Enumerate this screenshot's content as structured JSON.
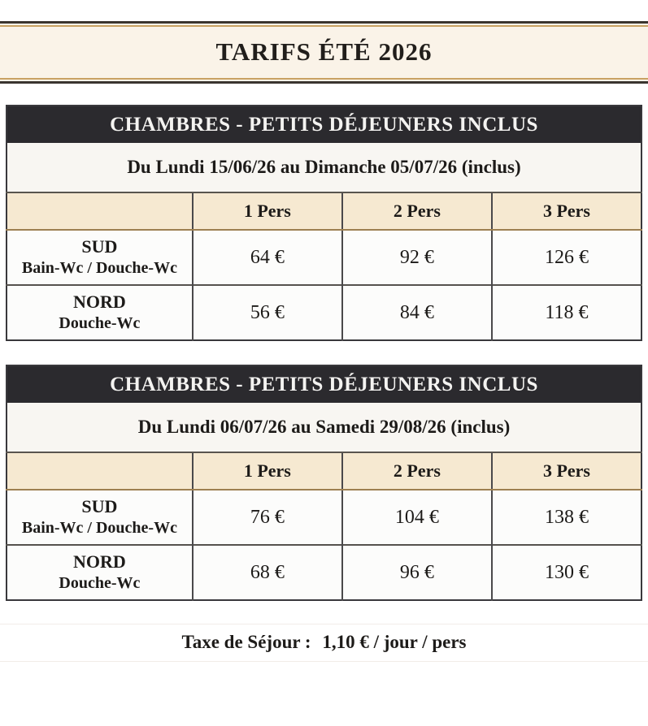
{
  "page": {
    "title": "TARIFS ÉTÉ 2026"
  },
  "tables": [
    {
      "header": "CHAMBRES - PETITS DÉJEUNERS INCLUS",
      "period": "Du Lundi 15/06/26 au Dimanche 05/07/26 (inclus)",
      "columns": [
        "1 Pers",
        "2 Pers",
        "3 Pers"
      ],
      "rows": [
        {
          "name": "SUD",
          "sub": "Bain-Wc / Douche-Wc",
          "prices": [
            "64 €",
            "92 €",
            "126 €"
          ]
        },
        {
          "name": "NORD",
          "sub": "Douche-Wc",
          "prices": [
            "56 €",
            "84 €",
            "118 €"
          ]
        }
      ]
    },
    {
      "header": "CHAMBRES - PETITS DÉJEUNERS INCLUS",
      "period": "Du Lundi 06/07/26 au Samedi 29/08/26 (inclus)",
      "columns": [
        "1 Pers",
        "2 Pers",
        "3 Pers"
      ],
      "rows": [
        {
          "name": "SUD",
          "sub": "Bain-Wc / Douche-Wc",
          "prices": [
            "76 €",
            "104 €",
            "138 €"
          ]
        },
        {
          "name": "NORD",
          "sub": "Douche-Wc",
          "prices": [
            "68 €",
            "96 €",
            "130 €"
          ]
        }
      ]
    }
  ],
  "footer": {
    "label": "Taxe de Séjour :",
    "value": "1,10 €",
    "suffix": " / jour / pers"
  },
  "colors": {
    "table_header_bg": "#2b2a2e",
    "table_header_text": "#f4f3f1",
    "column_band_bg": "#f6e9d1",
    "banner_bg": "#faf3e8",
    "banner_gold_line": "#c9a263",
    "banner_dark_line": "#3a352f",
    "column_band_bottom_border": "#9d7f51",
    "table_border": "#39383c",
    "text": "#1d1b19"
  }
}
